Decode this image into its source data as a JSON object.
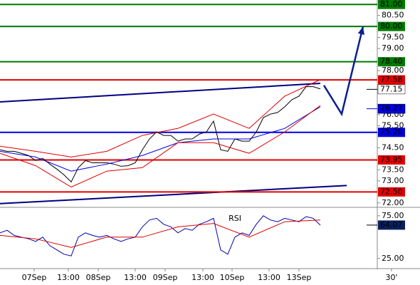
{
  "chart_data": {
    "type": "line",
    "xlim": [
      0,
      59
    ],
    "ylim": [
      71.8,
      81.2
    ],
    "xticks": [
      {
        "value": 4.8,
        "label": "07Sep"
      },
      {
        "value": 9.6,
        "label": "13:00"
      },
      {
        "value": 13.8,
        "label": "08Sep"
      },
      {
        "value": 19,
        "label": "13:00"
      },
      {
        "value": 23.2,
        "label": "09Sep"
      },
      {
        "value": 28.5,
        "label": "13:00"
      },
      {
        "value": 32.6,
        "label": "10Sep"
      },
      {
        "value": 37.8,
        "label": "13:00"
      },
      {
        "value": 42,
        "label": "13Sep"
      },
      {
        "value": 55,
        "label": "30'"
      }
    ],
    "yticks": [
      {
        "value": 80.5,
        "label": "80.50"
      },
      {
        "value": 79.5,
        "label": "79.50"
      },
      {
        "value": 79,
        "label": "79.00"
      },
      {
        "value": 78,
        "label": "78.00"
      },
      {
        "value": 76,
        "label": "76.00"
      },
      {
        "value": 75.5,
        "label": "75.50"
      },
      {
        "value": 74.5,
        "label": "74.50"
      },
      {
        "value": 73.5,
        "label": "73.50"
      },
      {
        "value": 73,
        "label": "73.00"
      },
      {
        "value": 72,
        "label": "72.00"
      }
    ],
    "levels": [
      {
        "value": 81,
        "label": "81.00",
        "color": "#007a00"
      },
      {
        "value": 80,
        "label": "80.00",
        "color": "#007a00"
      },
      {
        "value": 78.4,
        "label": "78.40",
        "color": "#007a00"
      },
      {
        "value": 77.58,
        "label": "77.58",
        "color": "#e00000"
      },
      {
        "value": 75.2,
        "label": "75.20",
        "color": "#0000e0"
      },
      {
        "value": 73.95,
        "label": "73.95",
        "color": "#e00000"
      },
      {
        "value": 72.5,
        "label": "72.50",
        "color": "#e00000"
      }
    ],
    "markers": [
      {
        "value": 77.15,
        "label": "77.15",
        "color": "#ffffff"
      },
      {
        "value": 76.27,
        "label": "76.27",
        "color": "#0000e0"
      }
    ],
    "series": [
      {
        "x": [
          0,
          1,
          2,
          3,
          4,
          5,
          6,
          7,
          8,
          9,
          10,
          11,
          12,
          13,
          14,
          15,
          16,
          17,
          18,
          19,
          20,
          21,
          22,
          23,
          24,
          25,
          26,
          27,
          28,
          29,
          30,
          31,
          32,
          33,
          34,
          35,
          36,
          37,
          38,
          39,
          40,
          41,
          42,
          43,
          44,
          45
        ],
        "values": [
          74.41,
          74.34,
          74.34,
          74.25,
          74.15,
          73.92,
          74.02,
          73.76,
          73.53,
          73.27,
          72.95,
          73.6,
          73.92,
          73.82,
          73.82,
          73.82,
          73.76,
          73.66,
          73.69,
          73.82,
          74.41,
          74.9,
          75.22,
          75.06,
          75.06,
          74.8,
          74.9,
          74.9,
          75.12,
          75.22,
          75.71,
          74.41,
          74.34,
          74.9,
          74.8,
          74.8,
          75.22,
          75.87,
          76.03,
          76.1,
          76.36,
          76.68,
          76.84,
          77.27,
          77.27,
          77.17
        ],
        "color": "#000000"
      },
      {
        "x": [
          0,
          5,
          10,
          15,
          20,
          25,
          30,
          35,
          40,
          45
        ],
        "values": [
          74.34,
          74.08,
          73.44,
          73.76,
          74.15,
          74.73,
          74.9,
          74.9,
          75.38,
          76.36
        ],
        "color": "#0000dd"
      },
      {
        "x": [
          0,
          5,
          10,
          15,
          20,
          25,
          30,
          35,
          40,
          45
        ],
        "values": [
          74.57,
          74.34,
          74.08,
          74.34,
          75.06,
          75.38,
          76.03,
          75.38,
          76.84,
          77.59
        ],
        "color": "#dd0000"
      },
      {
        "x": [
          0,
          5,
          10,
          15,
          20,
          25,
          30,
          35,
          40,
          45
        ],
        "values": [
          74.25,
          73.69,
          72.72,
          73.44,
          73.6,
          74.73,
          74.73,
          74.25,
          75.22,
          76.42
        ],
        "color": "#dd0000"
      }
    ],
    "trendlines": [
      {
        "x": [
          0,
          45
        ],
        "values": [
          76.58,
          77.42
        ],
        "color": "#000080"
      },
      {
        "x": [
          0,
          48.7
        ],
        "values": [
          71.97,
          72.79
        ],
        "color": "#000080"
      }
    ],
    "forecast": {
      "x": [
        45.5,
        48,
        51
      ],
      "values": [
        77.33,
        76.03,
        80
      ],
      "color": "#0a1f8f"
    },
    "rsi": {
      "title": "RSI",
      "ylim": [
        14,
        84
      ],
      "yticks": [
        {
          "value": 75,
          "label": "75.00"
        },
        {
          "value": 25,
          "label": "25.00"
        }
      ],
      "last": {
        "value": 64.07,
        "label": "64.07"
      },
      "series": [
        {
          "x": [
            0,
            1,
            2,
            3,
            4,
            5,
            6,
            7,
            8,
            9,
            10,
            11,
            12,
            13,
            14,
            15,
            16,
            17,
            18,
            19,
            20,
            21,
            22,
            23,
            24,
            25,
            26,
            27,
            28,
            29,
            30,
            31,
            32,
            33,
            34,
            35,
            36,
            37,
            38,
            39,
            40,
            41,
            42,
            43,
            44,
            45
          ],
          "values": [
            55,
            58,
            52,
            50,
            48,
            45,
            50,
            40,
            35,
            30,
            28,
            50,
            55,
            52,
            50,
            52,
            48,
            45,
            48,
            50,
            62,
            70,
            72,
            65,
            62,
            55,
            60,
            58,
            65,
            68,
            72,
            35,
            30,
            50,
            55,
            52,
            65,
            75,
            70,
            68,
            72,
            70,
            68,
            74,
            72,
            64
          ],
          "color": "#0000aa"
        },
        {
          "x": [
            0,
            5,
            10,
            15,
            20,
            25,
            30,
            35,
            40,
            45
          ],
          "values": [
            52,
            48,
            38,
            50,
            50,
            62,
            66,
            50,
            68,
            70
          ],
          "color": "#dd0000"
        }
      ]
    }
  }
}
